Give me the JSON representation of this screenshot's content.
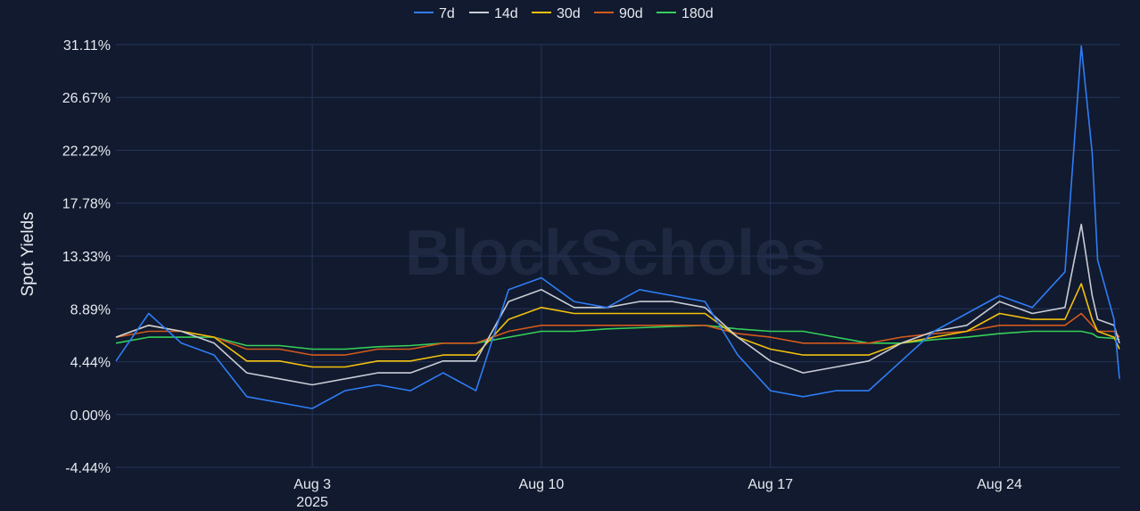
{
  "chart_data": {
    "type": "line",
    "title": "",
    "ylabel": "Spot Yields",
    "xlabel": "",
    "watermark": "BlockScholes",
    "ylim": [
      -4.44,
      31.11
    ],
    "y_ticks": [
      31.11,
      26.67,
      22.22,
      17.78,
      13.33,
      8.89,
      4.44,
      0.0,
      -4.44
    ],
    "y_tick_labels": [
      "31.11%",
      "26.67%",
      "22.22%",
      "17.78%",
      "13.33%",
      "8.89%",
      "4.44%",
      "0.00%",
      "-4.44%"
    ],
    "x_range": [
      "2025-07-28",
      "2025-08-27 16:00"
    ],
    "x_ticks": [
      {
        "date": "2025-08-03",
        "label": "Aug 3",
        "sublabel": "2025"
      },
      {
        "date": "2025-08-10",
        "label": "Aug 10",
        "sublabel": ""
      },
      {
        "date": "2025-08-17",
        "label": "Aug 17",
        "sublabel": ""
      },
      {
        "date": "2025-08-24",
        "label": "Aug 24",
        "sublabel": ""
      }
    ],
    "grid": true,
    "legend_position": "top-center",
    "background": "#111a2e",
    "grid_color": "#25345a",
    "series": [
      {
        "name": "7d",
        "color": "#2f7df6",
        "x": [
          "2025-07-28",
          "2025-07-29",
          "2025-07-30",
          "2025-07-31",
          "2025-08-01",
          "2025-08-02",
          "2025-08-03",
          "2025-08-04",
          "2025-08-05",
          "2025-08-06",
          "2025-08-07",
          "2025-08-08",
          "2025-08-09",
          "2025-08-10",
          "2025-08-11",
          "2025-08-12",
          "2025-08-13",
          "2025-08-14",
          "2025-08-15",
          "2025-08-16",
          "2025-08-17",
          "2025-08-18",
          "2025-08-19",
          "2025-08-20",
          "2025-08-21",
          "2025-08-22",
          "2025-08-23",
          "2025-08-24",
          "2025-08-25",
          "2025-08-26",
          "2025-08-26 12:00",
          "2025-08-26 20:00",
          "2025-08-27",
          "2025-08-27 12:00",
          "2025-08-27 16:00"
        ],
        "y": [
          4.5,
          8.5,
          6.0,
          5.0,
          1.5,
          1.0,
          0.5,
          2.0,
          2.5,
          2.0,
          3.5,
          2.0,
          10.5,
          11.5,
          9.5,
          9.0,
          10.5,
          10.0,
          9.5,
          5.0,
          2.0,
          1.5,
          2.0,
          2.0,
          4.5,
          7.0,
          8.5,
          10.0,
          9.0,
          12.0,
          31.0,
          22.0,
          13.0,
          8.0,
          3.0
        ]
      },
      {
        "name": "14d",
        "color": "#c9ccd6",
        "x": [
          "2025-07-28",
          "2025-07-29",
          "2025-07-30",
          "2025-07-31",
          "2025-08-01",
          "2025-08-02",
          "2025-08-03",
          "2025-08-04",
          "2025-08-05",
          "2025-08-06",
          "2025-08-07",
          "2025-08-08",
          "2025-08-09",
          "2025-08-10",
          "2025-08-11",
          "2025-08-12",
          "2025-08-13",
          "2025-08-14",
          "2025-08-15",
          "2025-08-16",
          "2025-08-17",
          "2025-08-18",
          "2025-08-19",
          "2025-08-20",
          "2025-08-21",
          "2025-08-22",
          "2025-08-23",
          "2025-08-24",
          "2025-08-25",
          "2025-08-26",
          "2025-08-26 12:00",
          "2025-08-26 20:00",
          "2025-08-27",
          "2025-08-27 12:00",
          "2025-08-27 16:00"
        ],
        "y": [
          6.5,
          7.5,
          7.0,
          6.0,
          3.5,
          3.0,
          2.5,
          3.0,
          3.5,
          3.5,
          4.5,
          4.5,
          9.5,
          10.5,
          9.0,
          9.0,
          9.5,
          9.5,
          9.0,
          6.5,
          4.5,
          3.5,
          4.0,
          4.5,
          6.0,
          7.0,
          7.5,
          9.5,
          8.5,
          9.0,
          16.0,
          10.0,
          8.0,
          7.5,
          6.0
        ]
      },
      {
        "name": "30d",
        "color": "#f2c00e",
        "x": [
          "2025-07-28",
          "2025-07-29",
          "2025-07-30",
          "2025-07-31",
          "2025-08-01",
          "2025-08-02",
          "2025-08-03",
          "2025-08-04",
          "2025-08-05",
          "2025-08-06",
          "2025-08-07",
          "2025-08-08",
          "2025-08-09",
          "2025-08-10",
          "2025-08-11",
          "2025-08-12",
          "2025-08-13",
          "2025-08-14",
          "2025-08-15",
          "2025-08-16",
          "2025-08-17",
          "2025-08-18",
          "2025-08-19",
          "2025-08-20",
          "2025-08-21",
          "2025-08-22",
          "2025-08-23",
          "2025-08-24",
          "2025-08-25",
          "2025-08-26",
          "2025-08-26 12:00",
          "2025-08-26 20:00",
          "2025-08-27",
          "2025-08-27 12:00",
          "2025-08-27 16:00"
        ],
        "y": [
          6.5,
          7.5,
          7.0,
          6.5,
          4.5,
          4.5,
          4.0,
          4.0,
          4.5,
          4.5,
          5.0,
          5.0,
          8.0,
          9.0,
          8.5,
          8.5,
          8.5,
          8.5,
          8.5,
          6.5,
          5.5,
          5.0,
          5.0,
          5.0,
          6.0,
          6.5,
          7.0,
          8.5,
          8.0,
          8.0,
          11.0,
          8.0,
          7.0,
          6.5,
          5.5
        ]
      },
      {
        "name": "90d",
        "color": "#d4591c",
        "x": [
          "2025-07-28",
          "2025-07-29",
          "2025-07-30",
          "2025-07-31",
          "2025-08-01",
          "2025-08-02",
          "2025-08-03",
          "2025-08-04",
          "2025-08-05",
          "2025-08-06",
          "2025-08-07",
          "2025-08-08",
          "2025-08-09",
          "2025-08-10",
          "2025-08-11",
          "2025-08-12",
          "2025-08-13",
          "2025-08-14",
          "2025-08-15",
          "2025-08-16",
          "2025-08-17",
          "2025-08-18",
          "2025-08-19",
          "2025-08-20",
          "2025-08-21",
          "2025-08-22",
          "2025-08-23",
          "2025-08-24",
          "2025-08-25",
          "2025-08-26",
          "2025-08-26 12:00",
          "2025-08-26 20:00",
          "2025-08-27",
          "2025-08-27 12:00",
          "2025-08-27 16:00"
        ],
        "y": [
          6.5,
          7.0,
          7.0,
          6.5,
          5.5,
          5.5,
          5.0,
          5.0,
          5.5,
          5.5,
          6.0,
          6.0,
          7.0,
          7.5,
          7.5,
          7.5,
          7.5,
          7.5,
          7.5,
          6.8,
          6.5,
          6.0,
          6.0,
          6.0,
          6.5,
          6.8,
          7.0,
          7.5,
          7.5,
          7.5,
          8.5,
          7.5,
          7.0,
          7.0,
          6.5
        ]
      },
      {
        "name": "180d",
        "color": "#35d05a",
        "x": [
          "2025-07-28",
          "2025-07-29",
          "2025-07-30",
          "2025-07-31",
          "2025-08-01",
          "2025-08-02",
          "2025-08-03",
          "2025-08-04",
          "2025-08-05",
          "2025-08-06",
          "2025-08-07",
          "2025-08-08",
          "2025-08-09",
          "2025-08-10",
          "2025-08-11",
          "2025-08-12",
          "2025-08-13",
          "2025-08-14",
          "2025-08-15",
          "2025-08-16",
          "2025-08-17",
          "2025-08-18",
          "2025-08-19",
          "2025-08-20",
          "2025-08-21",
          "2025-08-22",
          "2025-08-23",
          "2025-08-24",
          "2025-08-25",
          "2025-08-26",
          "2025-08-26 12:00",
          "2025-08-26 20:00",
          "2025-08-27",
          "2025-08-27 12:00",
          "2025-08-27 16:00"
        ],
        "y": [
          6.0,
          6.5,
          6.5,
          6.5,
          5.8,
          5.8,
          5.5,
          5.5,
          5.7,
          5.8,
          6.0,
          6.0,
          6.5,
          7.0,
          7.0,
          7.2,
          7.3,
          7.4,
          7.5,
          7.2,
          7.0,
          7.0,
          6.5,
          6.0,
          6.0,
          6.3,
          6.5,
          6.8,
          7.0,
          7.0,
          7.0,
          6.8,
          6.5,
          6.4,
          6.3
        ]
      }
    ]
  }
}
